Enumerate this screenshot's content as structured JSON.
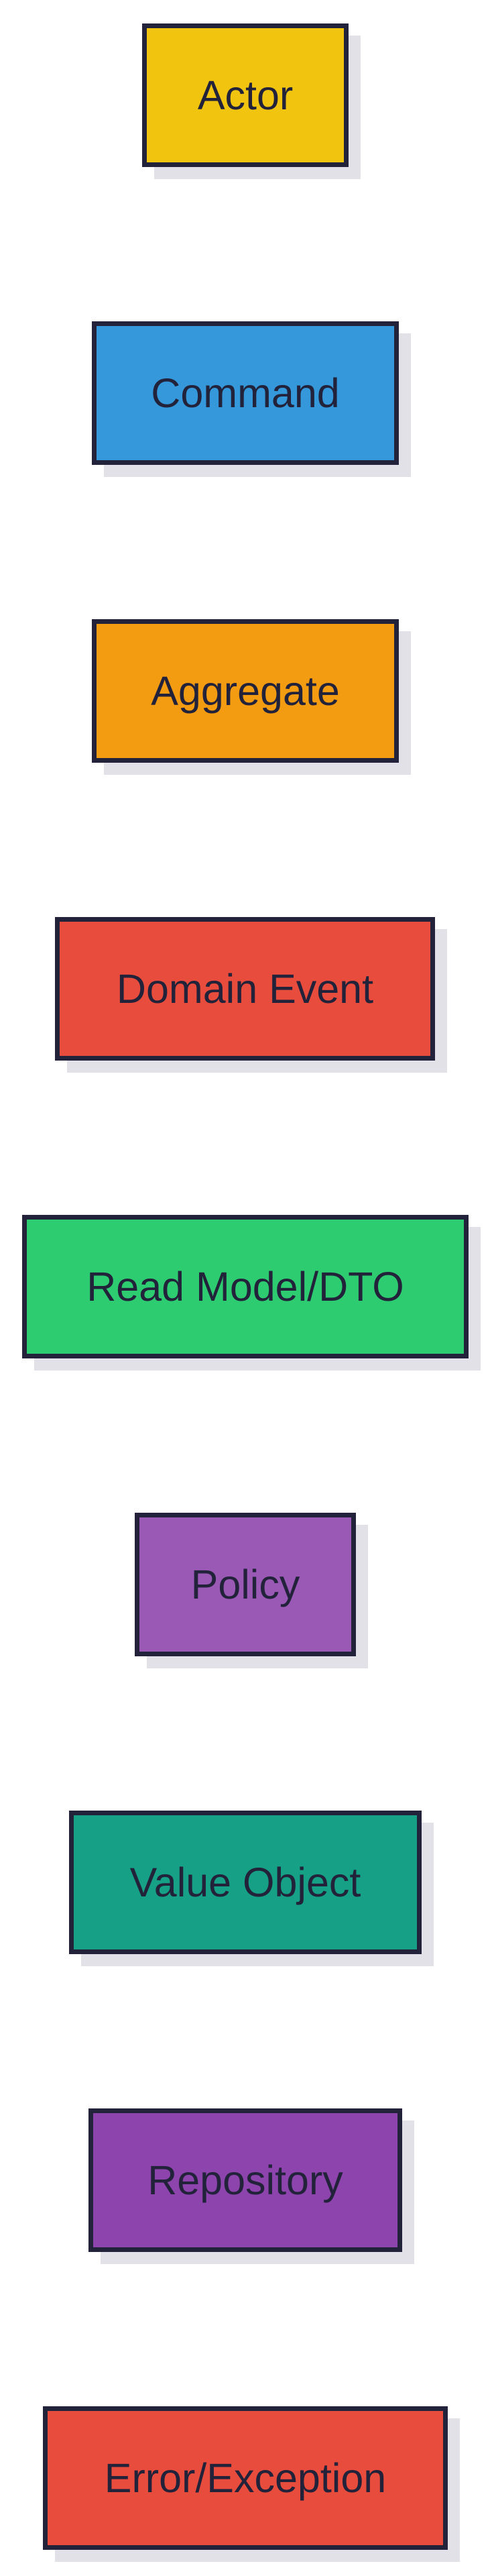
{
  "nodes": [
    {
      "id": "actor",
      "label": "Actor",
      "color": "#f1c40f"
    },
    {
      "id": "command",
      "label": "Command",
      "color": "#3498db"
    },
    {
      "id": "aggregate",
      "label": "Aggregate",
      "color": "#f39c12"
    },
    {
      "id": "domain-event",
      "label": "Domain Event",
      "color": "#e74c3c"
    },
    {
      "id": "read-model-dto",
      "label": "Read Model/DTO",
      "color": "#2ecc71"
    },
    {
      "id": "policy",
      "label": "Policy",
      "color": "#9b59b6"
    },
    {
      "id": "value-object",
      "label": "Value Object",
      "color": "#16a085"
    },
    {
      "id": "repository",
      "label": "Repository",
      "color": "#8e44ad"
    },
    {
      "id": "error-exception",
      "label": "Error/Exception",
      "color": "#e74c3c"
    }
  ]
}
